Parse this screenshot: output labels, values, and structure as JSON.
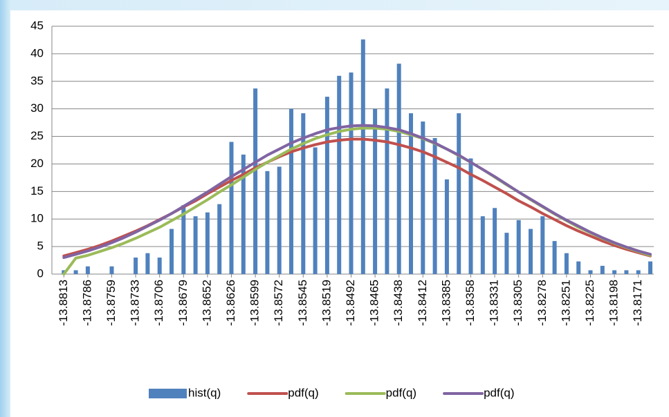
{
  "chart_data": {
    "type": "bar",
    "categories": [
      "-13.8813",
      null,
      "-13.8786",
      null,
      "-13.8759",
      null,
      "-13.8733",
      null,
      "-13.8706",
      null,
      "-13.8679",
      null,
      "-13.8652",
      null,
      "-13.8626",
      null,
      "-13.8599",
      null,
      "-13.8572",
      null,
      "-13.8545",
      null,
      "-13.8519",
      null,
      "-13.8492",
      null,
      "-13.8465",
      null,
      "-13.8438",
      null,
      "-13.8412",
      null,
      "-13.8385",
      null,
      "-13.8358",
      null,
      "-13.8331",
      null,
      "-13.8305",
      null,
      "-13.8278",
      null,
      "-13.8251",
      null,
      "-13.8225",
      null,
      "-13.8198",
      null,
      "-13.8171",
      null
    ],
    "series": [
      {
        "name": "hist(q)",
        "type": "bar",
        "color": "#4f81bd",
        "values": [
          0.7,
          0.7,
          1.4,
          0,
          1.4,
          0,
          3,
          3.8,
          3,
          8.2,
          12.5,
          10.5,
          11.2,
          12.7,
          24,
          21.7,
          33.7,
          18.7,
          19.5,
          30,
          29.2,
          23,
          32.2,
          36,
          36.6,
          42.6,
          30,
          33.7,
          38.2,
          29.2,
          27.7,
          24.7,
          17.2,
          29.2,
          21,
          10.5,
          12,
          7.5,
          9.8,
          8.2,
          10.5,
          6,
          3.8,
          2.3,
          0.7,
          1.5,
          0.7,
          0.7,
          0.7,
          2.3
        ]
      },
      {
        "name": "pdf(q)",
        "type": "line",
        "color": "#c0504d",
        "values": [
          3.3,
          3.9,
          4.5,
          5.2,
          6.0,
          6.9,
          7.8,
          8.8,
          9.9,
          11.0,
          12.2,
          13.3,
          14.6,
          15.8,
          17.0,
          18.1,
          19.3,
          20.3,
          21.3,
          22.2,
          22.9,
          23.5,
          24.0,
          24.3,
          24.5,
          24.5,
          24.3,
          24.0,
          23.5,
          22.9,
          22.2,
          21.3,
          20.3,
          19.3,
          18.1,
          17.0,
          15.8,
          14.6,
          13.3,
          12.2,
          11.0,
          9.9,
          8.8,
          7.8,
          6.9,
          6.0,
          5.2,
          4.5,
          3.9,
          3.3
        ]
      },
      {
        "name": "pdf(q)",
        "type": "line",
        "color": "#9bbb59",
        "values": [
          0,
          2.9,
          3.4,
          4.1,
          4.8,
          5.6,
          6.5,
          7.5,
          8.5,
          9.7,
          10.9,
          12.2,
          13.5,
          14.9,
          16.2,
          17.6,
          19.0,
          20.3,
          21.5,
          22.7,
          23.7,
          24.6,
          25.3,
          25.9,
          26.3,
          26.5,
          26.5,
          26.3,
          25.9,
          25.3,
          24.6,
          23.7,
          22.7,
          21.5,
          20.3,
          19.0,
          17.6,
          16.2,
          14.9,
          13.5,
          12.2,
          10.9,
          9.7,
          8.5,
          7.5,
          6.5,
          5.6,
          4.8,
          4.1,
          3.4
        ]
      },
      {
        "name": "pdf(q)",
        "type": "line",
        "color": "#8064a2",
        "values": [
          3.0,
          3.6,
          4.2,
          4.9,
          5.7,
          6.6,
          7.6,
          8.7,
          9.8,
          11.0,
          12.3,
          13.6,
          14.9,
          16.3,
          17.7,
          19.0,
          20.3,
          21.6,
          22.7,
          23.8,
          24.7,
          25.5,
          26.2,
          26.6,
          26.9,
          27.0,
          26.9,
          26.6,
          26.2,
          25.5,
          24.7,
          23.8,
          22.7,
          21.6,
          20.3,
          19.0,
          17.7,
          16.3,
          14.9,
          13.6,
          12.3,
          11.0,
          9.8,
          8.7,
          7.6,
          6.6,
          5.7,
          4.9,
          4.2,
          3.6
        ]
      }
    ],
    "ylim": [
      0,
      45
    ],
    "yticks": [
      0,
      5,
      10,
      15,
      20,
      25,
      30,
      35,
      40,
      45
    ],
    "grid": true,
    "legend": "bottom"
  }
}
